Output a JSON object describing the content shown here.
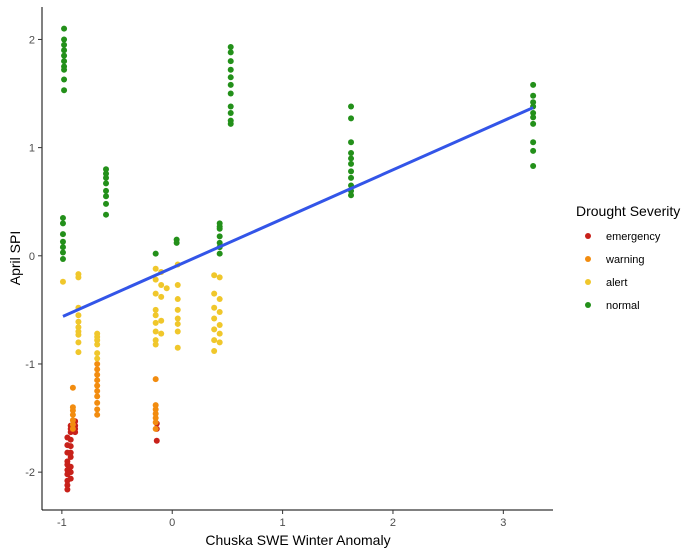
{
  "chart_data": {
    "type": "scatter",
    "title": "",
    "xlabel": "Chuska SWE Winter Anomaly",
    "ylabel": "April SPI",
    "xlim": [
      -1.18,
      3.45
    ],
    "ylim": [
      -2.35,
      2.3
    ],
    "x_ticks": [
      -1,
      0,
      1,
      2,
      3
    ],
    "x_tick_labels": [
      "-1",
      "0",
      "1",
      "2",
      "3"
    ],
    "y_ticks": [
      -2,
      -1,
      0,
      1,
      2
    ],
    "y_tick_labels": [
      "-2",
      "-1",
      "0",
      "1",
      "2"
    ],
    "grid": false,
    "legend": {
      "title": "Drought Severity",
      "placement": "right",
      "entries": [
        "emergency",
        "warning",
        "alert",
        "normal"
      ]
    },
    "colors": {
      "emergency": "#c8211a",
      "warning": "#f28c0f",
      "alert": "#f0c72b",
      "normal": "#23901a",
      "fit_line": "#3355e8"
    },
    "trend_line": {
      "x": [
        -0.99,
        3.27
      ],
      "y": [
        -0.56,
        1.37
      ]
    },
    "series": [
      {
        "name": "emergency",
        "points": [
          [
            -0.95,
            -1.68
          ],
          [
            -0.95,
            -1.75
          ],
          [
            -0.95,
            -1.82
          ],
          [
            -0.95,
            -1.9
          ],
          [
            -0.95,
            -1.93
          ],
          [
            -0.95,
            -1.98
          ],
          [
            -0.95,
            -2.02
          ],
          [
            -0.95,
            -2.08
          ],
          [
            -0.95,
            -2.12
          ],
          [
            -0.95,
            -2.16
          ],
          [
            -0.92,
            -1.57
          ],
          [
            -0.92,
            -1.6
          ],
          [
            -0.92,
            -1.63
          ],
          [
            -0.92,
            -1.7
          ],
          [
            -0.92,
            -1.76
          ],
          [
            -0.92,
            -1.82
          ],
          [
            -0.92,
            -1.86
          ],
          [
            -0.92,
            -1.95
          ],
          [
            -0.92,
            -2.0
          ],
          [
            -0.92,
            -2.06
          ],
          [
            -0.88,
            -1.53
          ],
          [
            -0.88,
            -1.57
          ],
          [
            -0.88,
            -1.6
          ],
          [
            -0.88,
            -1.63
          ],
          [
            -0.14,
            -1.55
          ],
          [
            -0.14,
            -1.6
          ],
          [
            -0.14,
            -1.71
          ]
        ]
      },
      {
        "name": "warning",
        "points": [
          [
            -0.9,
            -1.22
          ],
          [
            -0.9,
            -1.4
          ],
          [
            -0.9,
            -1.43
          ],
          [
            -0.9,
            -1.47
          ],
          [
            -0.9,
            -1.52
          ],
          [
            -0.9,
            -1.56
          ],
          [
            -0.9,
            -1.6
          ],
          [
            -0.68,
            -1.0
          ],
          [
            -0.68,
            -1.05
          ],
          [
            -0.68,
            -1.1
          ],
          [
            -0.68,
            -1.15
          ],
          [
            -0.68,
            -1.2
          ],
          [
            -0.68,
            -1.25
          ],
          [
            -0.68,
            -1.3
          ],
          [
            -0.68,
            -1.36
          ],
          [
            -0.68,
            -1.42
          ],
          [
            -0.68,
            -1.47
          ],
          [
            -0.15,
            -1.14
          ],
          [
            -0.15,
            -1.38
          ],
          [
            -0.15,
            -1.42
          ],
          [
            -0.15,
            -1.46
          ],
          [
            -0.15,
            -1.5
          ],
          [
            -0.15,
            -1.54
          ],
          [
            -0.15,
            -1.6
          ]
        ]
      },
      {
        "name": "alert",
        "points": [
          [
            -0.99,
            -0.24
          ],
          [
            -0.85,
            -0.17
          ],
          [
            -0.85,
            -0.2
          ],
          [
            -0.85,
            -0.48
          ],
          [
            -0.85,
            -0.55
          ],
          [
            -0.85,
            -0.61
          ],
          [
            -0.85,
            -0.66
          ],
          [
            -0.85,
            -0.7
          ],
          [
            -0.85,
            -0.73
          ],
          [
            -0.85,
            -0.8
          ],
          [
            -0.85,
            -0.89
          ],
          [
            -0.68,
            -0.72
          ],
          [
            -0.68,
            -0.75
          ],
          [
            -0.68,
            -0.78
          ],
          [
            -0.68,
            -0.82
          ],
          [
            -0.68,
            -0.9
          ],
          [
            -0.68,
            -0.95
          ],
          [
            -0.15,
            -0.12
          ],
          [
            -0.15,
            -0.22
          ],
          [
            -0.15,
            -0.35
          ],
          [
            -0.15,
            -0.5
          ],
          [
            -0.15,
            -0.55
          ],
          [
            -0.15,
            -0.62
          ],
          [
            -0.15,
            -0.7
          ],
          [
            -0.15,
            -0.78
          ],
          [
            -0.15,
            -0.82
          ],
          [
            -0.1,
            -0.15
          ],
          [
            -0.1,
            -0.27
          ],
          [
            -0.1,
            -0.38
          ],
          [
            -0.1,
            -0.6
          ],
          [
            -0.1,
            -0.72
          ],
          [
            0.05,
            -0.08
          ],
          [
            0.05,
            -0.27
          ],
          [
            -0.05,
            -0.3
          ],
          [
            0.05,
            -0.4
          ],
          [
            0.05,
            -0.5
          ],
          [
            0.05,
            -0.58
          ],
          [
            0.05,
            -0.63
          ],
          [
            0.05,
            -0.7
          ],
          [
            0.05,
            -0.85
          ],
          [
            0.38,
            -0.18
          ],
          [
            0.38,
            -0.35
          ],
          [
            0.38,
            -0.48
          ],
          [
            0.38,
            -0.58
          ],
          [
            0.38,
            -0.68
          ],
          [
            0.38,
            -0.78
          ],
          [
            0.38,
            -0.88
          ],
          [
            0.43,
            -0.2
          ],
          [
            0.43,
            -0.4
          ],
          [
            0.43,
            -0.52
          ],
          [
            0.43,
            -0.64
          ],
          [
            0.43,
            -0.72
          ],
          [
            0.43,
            -0.8
          ]
        ]
      },
      {
        "name": "normal",
        "points": [
          [
            -0.98,
            2.1
          ],
          [
            -0.98,
            2.0
          ],
          [
            -0.98,
            1.95
          ],
          [
            -0.98,
            1.9
          ],
          [
            -0.98,
            1.85
          ],
          [
            -0.98,
            1.8
          ],
          [
            -0.98,
            1.75
          ],
          [
            -0.98,
            1.72
          ],
          [
            -0.98,
            1.63
          ],
          [
            -0.98,
            1.53
          ],
          [
            -0.99,
            0.35
          ],
          [
            -0.99,
            0.3
          ],
          [
            -0.99,
            0.2
          ],
          [
            -0.99,
            0.13
          ],
          [
            -0.99,
            0.08
          ],
          [
            -0.99,
            0.03
          ],
          [
            -0.99,
            -0.03
          ],
          [
            -0.6,
            0.8
          ],
          [
            -0.6,
            0.76
          ],
          [
            -0.6,
            0.72
          ],
          [
            -0.6,
            0.67
          ],
          [
            -0.6,
            0.6
          ],
          [
            -0.6,
            0.55
          ],
          [
            -0.6,
            0.48
          ],
          [
            -0.6,
            0.38
          ],
          [
            -0.15,
            0.02
          ],
          [
            0.04,
            0.15
          ],
          [
            0.04,
            0.12
          ],
          [
            0.43,
            0.3
          ],
          [
            0.43,
            0.27
          ],
          [
            0.43,
            0.25
          ],
          [
            0.43,
            0.18
          ],
          [
            0.43,
            0.12
          ],
          [
            0.43,
            0.08
          ],
          [
            0.43,
            0.02
          ],
          [
            0.53,
            1.93
          ],
          [
            0.53,
            1.88
          ],
          [
            0.53,
            1.8
          ],
          [
            0.53,
            1.72
          ],
          [
            0.53,
            1.65
          ],
          [
            0.53,
            1.58
          ],
          [
            0.53,
            1.5
          ],
          [
            0.53,
            1.38
          ],
          [
            0.53,
            1.32
          ],
          [
            0.53,
            1.25
          ],
          [
            0.53,
            1.22
          ],
          [
            1.62,
            1.38
          ],
          [
            1.62,
            1.27
          ],
          [
            1.62,
            1.05
          ],
          [
            1.62,
            0.95
          ],
          [
            1.62,
            0.9
          ],
          [
            1.62,
            0.85
          ],
          [
            1.62,
            0.78
          ],
          [
            1.62,
            0.72
          ],
          [
            1.62,
            0.65
          ],
          [
            1.62,
            0.6
          ],
          [
            1.62,
            0.56
          ],
          [
            3.27,
            1.58
          ],
          [
            3.27,
            1.48
          ],
          [
            3.27,
            1.42
          ],
          [
            3.27,
            1.38
          ],
          [
            3.27,
            1.32
          ],
          [
            3.27,
            1.28
          ],
          [
            3.27,
            1.22
          ],
          [
            3.27,
            1.05
          ],
          [
            3.27,
            0.97
          ],
          [
            3.27,
            0.83
          ]
        ]
      }
    ]
  }
}
